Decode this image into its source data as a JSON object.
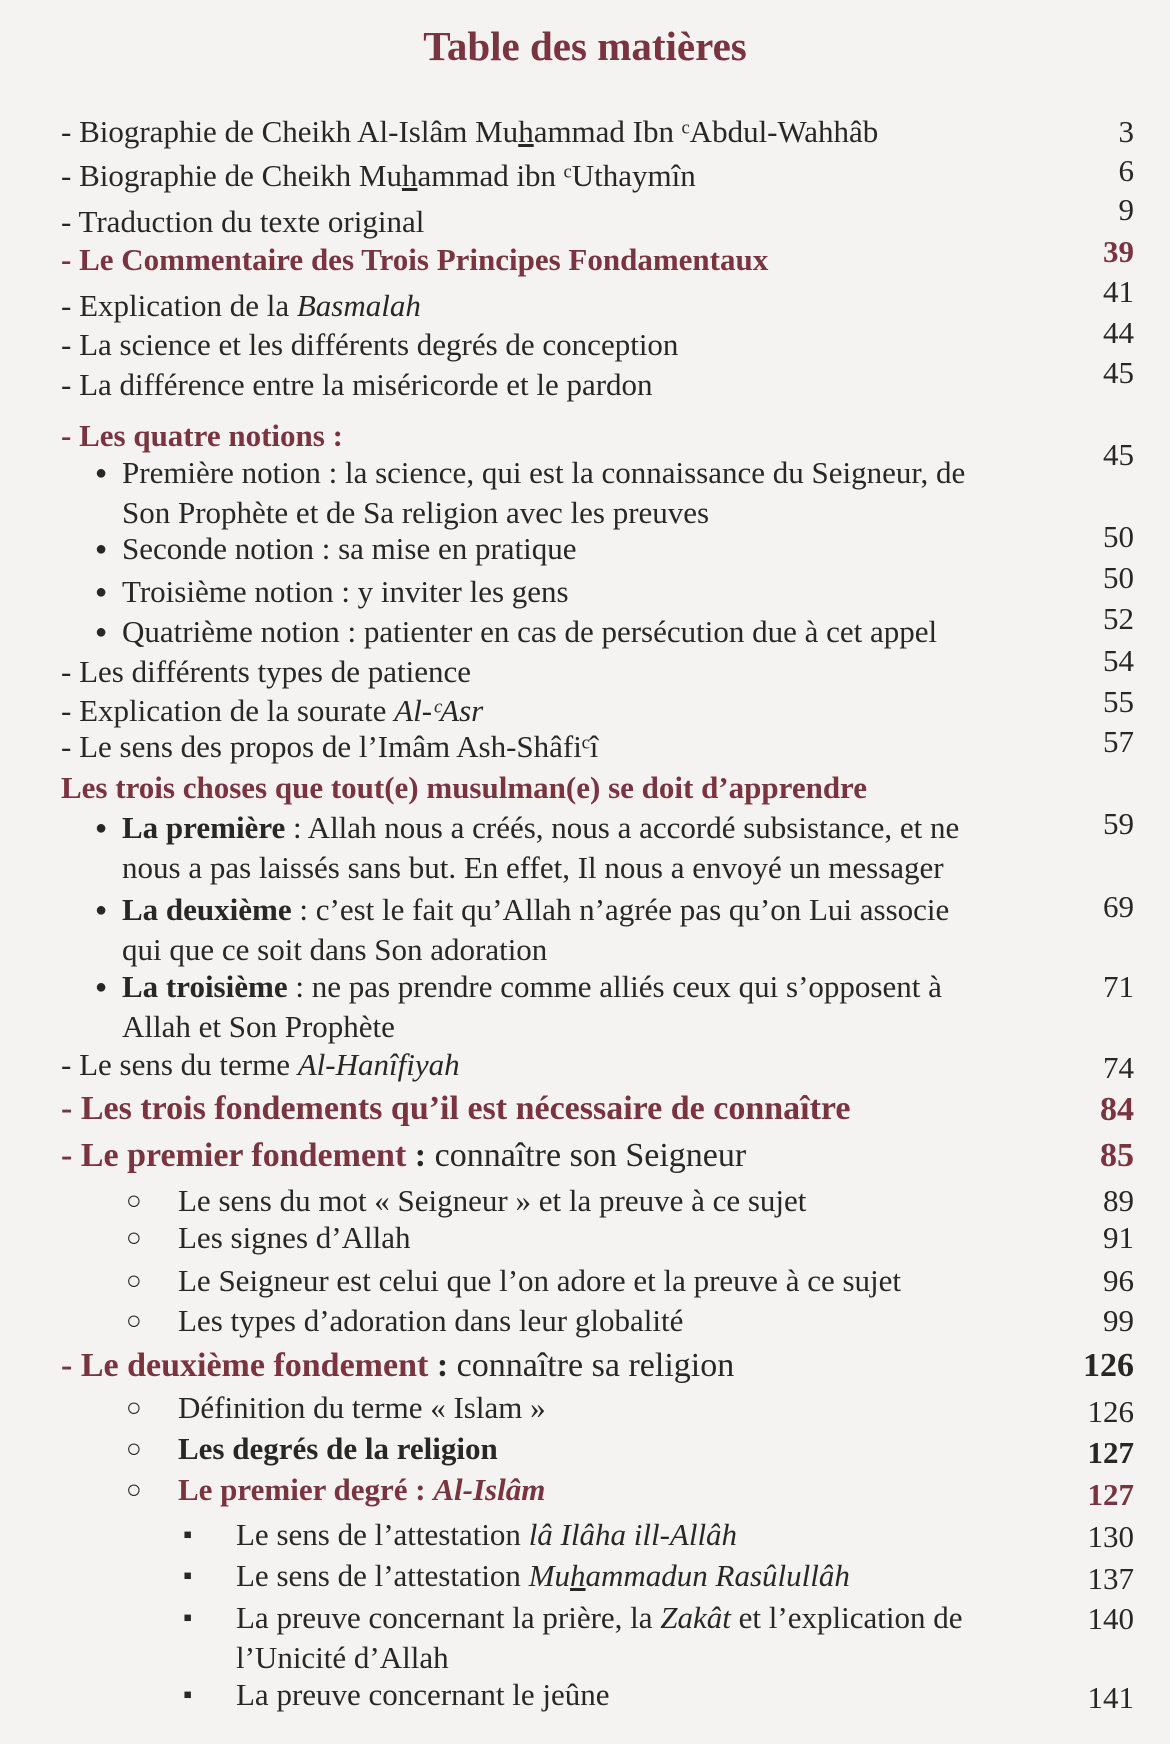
{
  "title": "Table des matières",
  "accent_color": "#7a3440",
  "entries": [
    {
      "bullet": "none",
      "lines": [
        [
          {
            "t": "- Biographie de Cheikh Al-Islâm Mu"
          },
          {
            "t": "h",
            "s": "u"
          },
          {
            "t": "ammad Ibn ᶜAbdul-Wahhâb"
          }
        ]
      ],
      "page": "3"
    },
    {
      "bullet": "none",
      "lines": [
        [
          {
            "t": "- Biographie de Cheikh Mu"
          },
          {
            "t": "h",
            "s": "u"
          },
          {
            "t": "ammad ibn ᶜUthaymîn"
          }
        ]
      ],
      "page": "6"
    },
    {
      "bullet": "none",
      "lines": [
        [
          {
            "t": "- Traduction du texte original"
          }
        ]
      ],
      "page": "9"
    },
    {
      "bullet": "none",
      "lines": [
        [
          {
            "t": "- Le Commentaire des Trois Principes Fondamentaux",
            "s": "r"
          }
        ]
      ],
      "page": "39",
      "page_style": "red"
    },
    {
      "bullet": "none",
      "lines": [
        [
          {
            "t": "- Explication de la "
          },
          {
            "t": "Basmalah",
            "s": "i"
          }
        ]
      ],
      "page": "41"
    },
    {
      "bullet": "none",
      "lines": [
        [
          {
            "t": "- La science et les différents degrés de conception"
          }
        ]
      ],
      "page": "44"
    },
    {
      "bullet": "none",
      "lines": [
        [
          {
            "t": "- La différence entre la miséricorde et le pardon"
          }
        ]
      ],
      "page": "45"
    },
    {
      "bullet": "none",
      "lines": [
        [
          {
            "t": "- Les quatre notions :",
            "s": "r"
          }
        ]
      ],
      "page": ""
    },
    {
      "bullet": "dot",
      "lines": [
        [
          {
            "t": "Première notion : la science, qui est la connaissance du Seigneur, de"
          }
        ],
        [
          {
            "t": "Son Prophète et de Sa religion avec les preuves"
          }
        ]
      ],
      "page": "45"
    },
    {
      "bullet": "dot",
      "lines": [
        [
          {
            "t": "Seconde notion : sa mise en pratique"
          }
        ]
      ],
      "page": "50"
    },
    {
      "bullet": "dot",
      "lines": [
        [
          {
            "t": "Troisième notion : y inviter les gens"
          }
        ]
      ],
      "page": "50"
    },
    {
      "bullet": "dot",
      "lines": [
        [
          {
            "t": "Quatrième notion : patienter en cas de persécution due à cet appel"
          }
        ]
      ],
      "page": "52"
    },
    {
      "bullet": "none",
      "lines": [
        [
          {
            "t": "- Les différents types de patience"
          }
        ]
      ],
      "page": "54"
    },
    {
      "bullet": "none",
      "lines": [
        [
          {
            "t": "- Explication de la sourate "
          },
          {
            "t": "Al-ᶜAsr",
            "s": "i"
          }
        ]
      ],
      "page": "55"
    },
    {
      "bullet": "none",
      "lines": [
        [
          {
            "t": "- Le sens des propos de l’Imâm Ash-Shâfiᶜî"
          }
        ]
      ],
      "page": "57"
    },
    {
      "bullet": "none",
      "lines": [
        [
          {
            "t": "Les trois choses que tout(e) musulman(e) se doit d’apprendre",
            "s": "r"
          }
        ]
      ],
      "page": ""
    },
    {
      "bullet": "dot",
      "lines": [
        [
          {
            "t": "La première",
            "s": "b"
          },
          {
            "t": " : Allah nous a créés, nous a accordé subsistance, et ne"
          }
        ],
        [
          {
            "t": "nous a pas laissés sans but. En effet, Il nous a envoyé un messager"
          }
        ]
      ],
      "page": "59"
    },
    {
      "bullet": "dot",
      "lines": [
        [
          {
            "t": "La deuxième",
            "s": "b"
          },
          {
            "t": " : c’est le fait qu’Allah n’agrée pas qu’on Lui associe"
          }
        ],
        [
          {
            "t": "qui que ce soit dans Son adoration"
          }
        ]
      ],
      "page": "69"
    },
    {
      "bullet": "dot",
      "lines": [
        [
          {
            "t": "La troisième",
            "s": "b"
          },
          {
            "t": " : ne pas prendre comme alliés ceux qui s’opposent à"
          }
        ],
        [
          {
            "t": "Allah et Son Prophète"
          }
        ]
      ],
      "page": "71"
    },
    {
      "bullet": "none",
      "lines": [
        [
          {
            "t": "- Le sens du terme "
          },
          {
            "t": "Al-Hanîfiyah",
            "s": "i"
          }
        ]
      ],
      "page": "74"
    },
    {
      "bullet": "none",
      "lines": [
        [
          {
            "t": "- Les trois fondements qu’il est nécessaire de connaître",
            "s": "r big"
          }
        ]
      ],
      "page": "84",
      "page_style": "red big"
    },
    {
      "bullet": "none",
      "lines": [
        [
          {
            "t": "- Le premier fondement",
            "s": "r big"
          },
          {
            "t": " : ",
            "s": "b big"
          },
          {
            "t": "connaître son Seigneur",
            "s": "big"
          }
        ]
      ],
      "page": "85",
      "page_style": "red big"
    },
    {
      "bullet": "circle",
      "lines": [
        [
          {
            "t": "Le sens du mot « Seigneur » et la preuve à ce sujet"
          }
        ]
      ],
      "page": "89"
    },
    {
      "bullet": "circle",
      "lines": [
        [
          {
            "t": "Les signes d’Allah"
          }
        ]
      ],
      "page": "91"
    },
    {
      "bullet": "circle",
      "lines": [
        [
          {
            "t": "Le Seigneur est celui que l’on adore et la preuve à ce sujet"
          }
        ]
      ],
      "page": "96"
    },
    {
      "bullet": "circle",
      "lines": [
        [
          {
            "t": "Les types d’adoration dans leur globalité"
          }
        ]
      ],
      "page": "99"
    },
    {
      "bullet": "none",
      "lines": [
        [
          {
            "t": "- Le deuxième fondement",
            "s": "r big"
          },
          {
            "t": " : ",
            "s": "b big"
          },
          {
            "t": "connaître sa religion",
            "s": "big"
          }
        ]
      ],
      "page": "126",
      "page_style": "bold big"
    },
    {
      "bullet": "circle",
      "lines": [
        [
          {
            "t": "Définition du terme « Islam »"
          }
        ]
      ],
      "page": "126"
    },
    {
      "bullet": "circle",
      "lines": [
        [
          {
            "t": "Les degrés de la religion",
            "s": "b"
          }
        ]
      ],
      "page": "127",
      "page_style": "bold"
    },
    {
      "bullet": "circle",
      "lines": [
        [
          {
            "t": "Le premier degré : ",
            "s": "r"
          },
          {
            "t": "Al-Islâm",
            "s": "r i"
          }
        ]
      ],
      "page": "127",
      "page_style": "red"
    },
    {
      "bullet": "square",
      "lines": [
        [
          {
            "t": "Le sens de l’attestation "
          },
          {
            "t": "lâ Ilâha ill-Allâh",
            "s": "i"
          }
        ]
      ],
      "page": "130"
    },
    {
      "bullet": "square",
      "lines": [
        [
          {
            "t": "Le sens de l’attestation "
          },
          {
            "t": "Mu",
            "s": "i"
          },
          {
            "t": "h",
            "s": "i u"
          },
          {
            "t": "ammadun Rasûlullâh",
            "s": "i"
          }
        ]
      ],
      "page": "137"
    },
    {
      "bullet": "square",
      "lines": [
        [
          {
            "t": "La preuve concernant la prière, la "
          },
          {
            "t": "Zakât",
            "s": "i"
          },
          {
            "t": " et l’explication de"
          }
        ],
        [
          {
            "t": "l’Unicité d’Allah"
          }
        ]
      ],
      "page": "140"
    },
    {
      "bullet": "square",
      "lines": [
        [
          {
            "t": "La preuve concernant le jeûne"
          }
        ]
      ],
      "page": "141"
    }
  ]
}
